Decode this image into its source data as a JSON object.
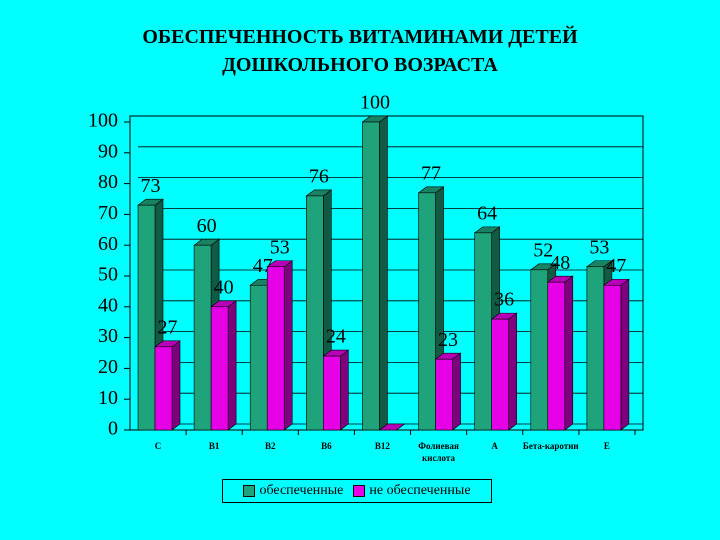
{
  "chart_data": {
    "type": "bar",
    "title": [
      "ОБЕСПЕЧЕННОСТЬ ВИТАМИНАМИ ДЕТЕЙ",
      "ДОШКОЛЬНОГО ВОЗРАСТА"
    ],
    "categories": [
      "С",
      "В1",
      "В2",
      "В6",
      "В12",
      "Фолиевая кислота",
      "А",
      "Бета-каротин",
      "Е"
    ],
    "series": [
      {
        "name": "обеспеченные",
        "color": "#1fa37a",
        "values": [
          73,
          60,
          47,
          76,
          100,
          77,
          64,
          52,
          53
        ]
      },
      {
        "name": "не обеспеченные",
        "color": "#e600e6",
        "values": [
          27,
          40,
          53,
          24,
          0,
          23,
          36,
          48,
          47
        ]
      }
    ],
    "ylim": [
      0,
      100
    ],
    "yticks": [
      0,
      10,
      20,
      30,
      40,
      50,
      60,
      70,
      80,
      90,
      100
    ],
    "grid": true
  }
}
